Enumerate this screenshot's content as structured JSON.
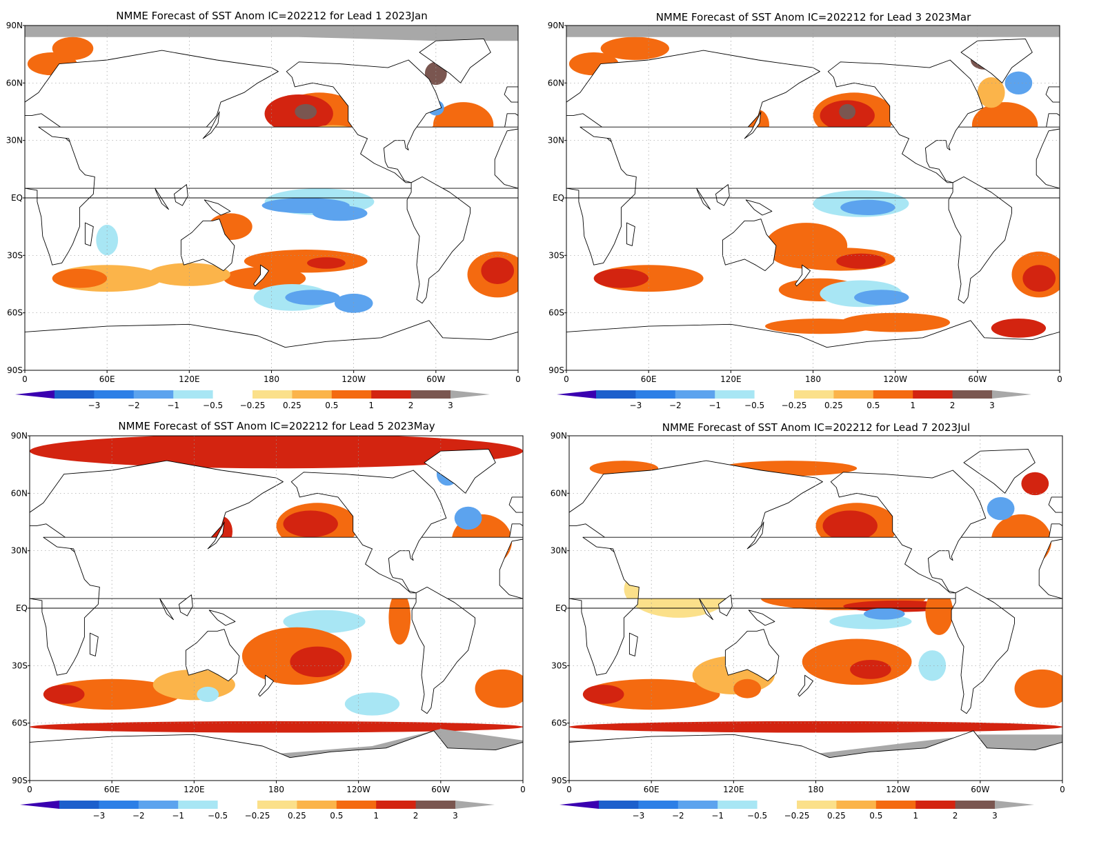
{
  "colors": {
    "land": "#ffffff",
    "missing": "#a8a8a8",
    "coast": "#000000",
    "bins": [
      "#3a00b0",
      "#1c5fcc",
      "#2d7fe6",
      "#5ca3ee",
      "#a8e6f4",
      "#ffffff",
      "#fbe08a",
      "#fbb44a",
      "#f46a10",
      "#d32410",
      "#7a5650",
      "#a8a8a8"
    ]
  },
  "colorbar": {
    "labels": [
      "−3",
      "−2",
      "−1",
      "−0.5",
      "−0.25",
      "0.25",
      "0.5",
      "1",
      "2",
      "3"
    ]
  },
  "axes": {
    "lat_labels": [
      "90N",
      "60N",
      "30N",
      "EQ",
      "30S",
      "60S",
      "90S"
    ],
    "lon_labels": [
      "0",
      "60E",
      "120E",
      "180",
      "120W",
      "60W",
      "0"
    ]
  },
  "panels": [
    {
      "title": "NMME Forecast of SST Anom IC=202212 for Lead 1 2023Jan",
      "lead": 1,
      "month": "2023Jan"
    },
    {
      "title": "NMME Forecast of SST Anom IC=202212 for Lead 3 2023Mar",
      "lead": 3,
      "month": "2023Mar"
    },
    {
      "title": "NMME Forecast of SST Anom IC=202212 for Lead 5 2023May",
      "lead": 5,
      "month": "2023May"
    },
    {
      "title": "NMME Forecast of SST Anom IC=202212 for Lead 7 2023Jul",
      "lead": 7,
      "month": "2023Jul"
    }
  ]
}
